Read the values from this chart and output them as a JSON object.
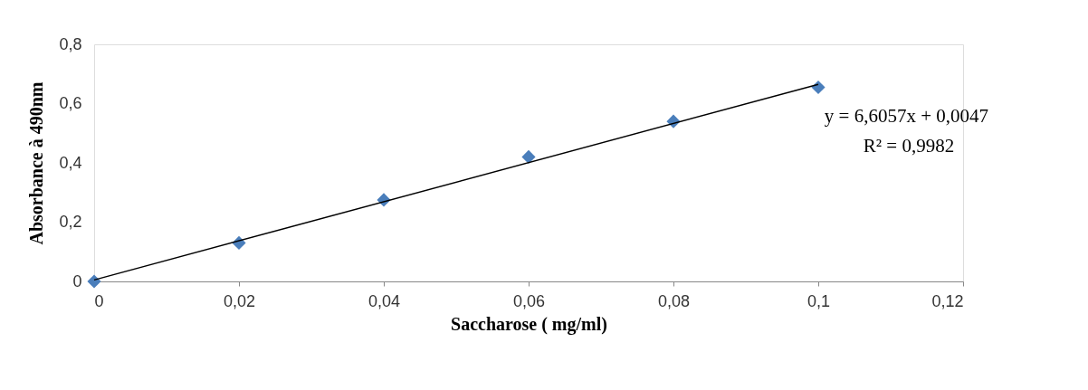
{
  "chart_data": {
    "type": "scatter",
    "xlabel": "Saccharose ( mg/ml)",
    "ylabel": "Absorbance à 490nm",
    "grid": false,
    "series": [
      {
        "marker": "diamond",
        "color": "#4a7ebb",
        "x": [
          0,
          0.02,
          0.04,
          0.06,
          0.08,
          0.1
        ],
        "values": [
          0,
          0.13,
          0.275,
          0.42,
          0.54,
          0.655
        ]
      },
      {
        "type": "line",
        "marker": "none",
        "color": "#000000",
        "x": [
          0,
          0.1
        ],
        "values": [
          0.005,
          0.665
        ]
      }
    ],
    "xlim": [
      0,
      0.12
    ],
    "ylim": [
      0,
      0.8
    ],
    "xticks": [
      0,
      {
        "value": 0.02,
        "label": "0,02"
      },
      {
        "value": 0.04,
        "label": "0,04"
      },
      {
        "value": 0.06,
        "label": "0,06"
      },
      {
        "value": 0.08,
        "label": "0,08"
      },
      {
        "value": 0.1,
        "label": "0,1"
      },
      {
        "value": 0.12,
        "label": "0,12"
      }
    ],
    "yticks": [
      0,
      {
        "value": 0.2,
        "label": "0,2"
      },
      {
        "value": 0.4,
        "label": "0,4"
      },
      {
        "value": 0.6,
        "label": "0,6"
      },
      {
        "value": 0.8,
        "label": "0,8"
      }
    ],
    "annotations": [
      "y = 6,6057x + 0,0047",
      "R² = 0,9982"
    ]
  }
}
